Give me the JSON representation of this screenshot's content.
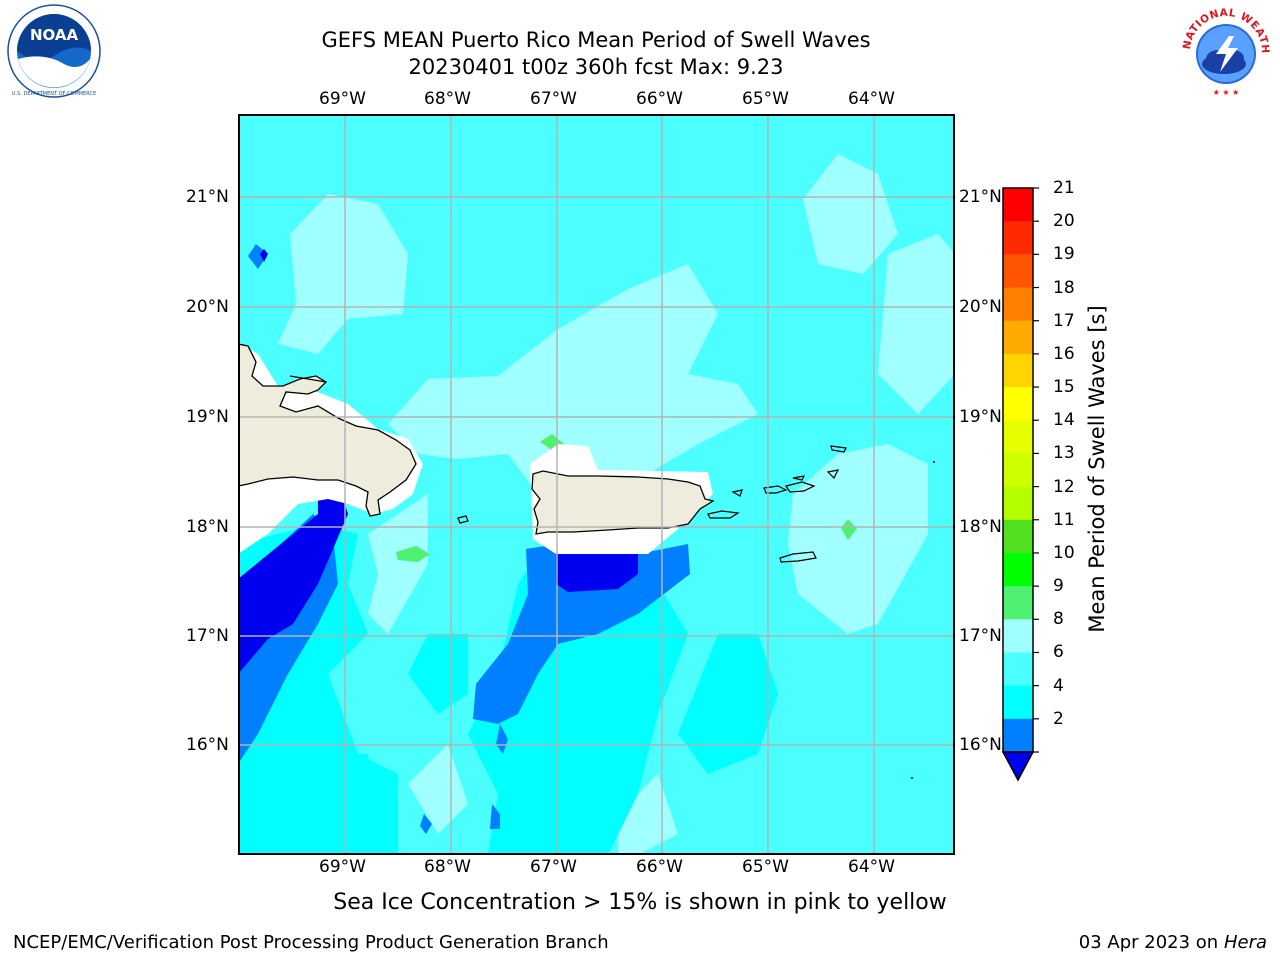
{
  "header": {
    "title_line1": "GEFS MEAN Puerto Rico Mean Period of Swell Waves",
    "title_line2": "20230401 t00z 360h fcst   Max: 9.23"
  },
  "logos": {
    "left": {
      "text": "NOAA",
      "ring_text": "NATIONAL OCEANIC AND ATMOSPHERIC ADMINISTRATION · U.S. DEPARTMENT OF COMMERCE"
    },
    "right": {
      "ring_text": "NATIONAL WEATHER SERVICE"
    }
  },
  "map": {
    "lon_labels": [
      "69°W",
      "68°W",
      "67°W",
      "66°W",
      "65°W",
      "64°W"
    ],
    "lat_labels": [
      "21°N",
      "20°N",
      "19°N",
      "18°N",
      "17°N",
      "16°N"
    ],
    "fields": [
      {
        "key": "deep_blue",
        "color": "#0000f0"
      },
      {
        "key": "mid_blue",
        "color": "#0080ff"
      },
      {
        "key": "cyan",
        "color": "#00ffff"
      },
      {
        "key": "light_cyan",
        "color": "#4cffff"
      },
      {
        "key": "pale_cyan",
        "color": "#a0ffff"
      },
      {
        "key": "green",
        "color": "#50f070"
      },
      {
        "key": "land",
        "color": "#eeecdc"
      }
    ]
  },
  "colorbar": {
    "label": "Mean Period of Swell Waves [s]",
    "ticks": [
      "21",
      "20",
      "19",
      "18",
      "17",
      "16",
      "15",
      "14",
      "13",
      "12",
      "11",
      "10",
      "9",
      "8",
      "6",
      "4",
      "2"
    ],
    "colors": [
      "#ff0000",
      "#ff2a00",
      "#ff5500",
      "#ff8000",
      "#ffaa00",
      "#ffd400",
      "#ffff00",
      "#e6ff00",
      "#ccff00",
      "#b3ff00",
      "#50e020",
      "#00ff00",
      "#50f070",
      "#a0ffff",
      "#4cffff",
      "#00ffff",
      "#0080ff"
    ],
    "extend_color": "#0000f0"
  },
  "footer": {
    "left": "NCEP/EMC/Verification Post Processing Product Generation Branch",
    "date": "03 Apr 2023 on ",
    "machine": "Hera"
  },
  "note": "Sea Ice Concentration > 15% is shown in pink to yellow"
}
